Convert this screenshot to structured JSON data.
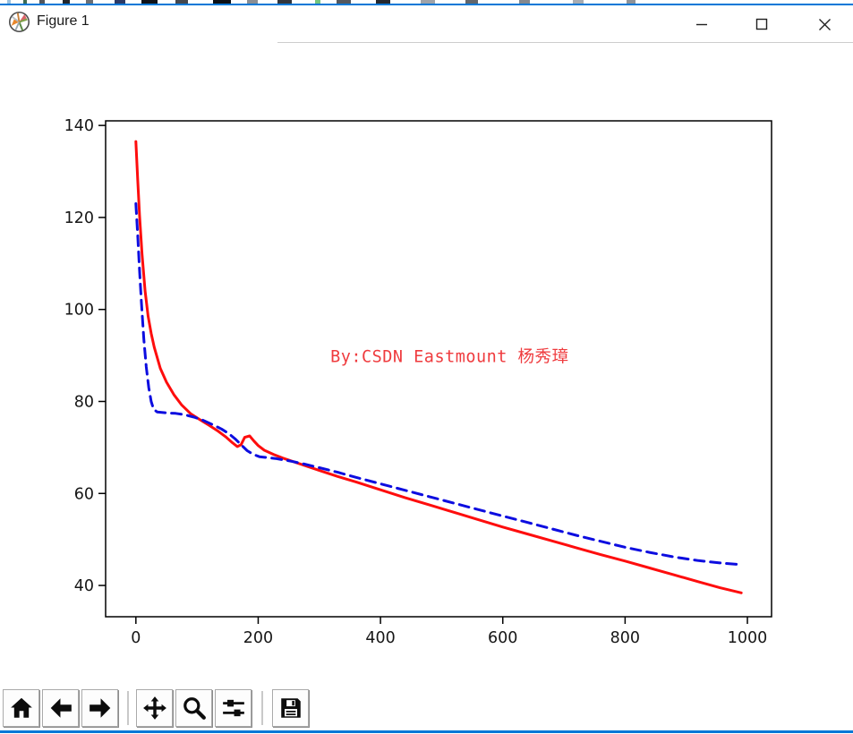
{
  "window": {
    "title": "Figure 1",
    "accent_color": "#0078d7",
    "icon_name": "matplotlib-logo-icon",
    "controls": [
      {
        "name": "minimize",
        "icon": "minimize-icon"
      },
      {
        "name": "maximize",
        "icon": "maximize-icon"
      },
      {
        "name": "close",
        "icon": "close-icon"
      }
    ]
  },
  "toolbar": {
    "buttons": [
      {
        "name": "home",
        "icon": "home-icon"
      },
      {
        "name": "back",
        "icon": "back-arrow-icon"
      },
      {
        "name": "forward",
        "icon": "forward-arrow-icon"
      },
      {
        "name": "pan",
        "icon": "pan-arrows-icon"
      },
      {
        "name": "zoom-to-rect",
        "icon": "zoom-magnifier-icon"
      },
      {
        "name": "configure-subplots",
        "icon": "sliders-icon"
      },
      {
        "name": "save",
        "icon": "save-floppy-icon"
      }
    ]
  },
  "chart_data": {
    "type": "line",
    "title": "",
    "xlabel": "",
    "ylabel": "",
    "xlim": [
      -49.5,
      1039.5
    ],
    "ylim": [
      33.2,
      141.0
    ],
    "xticks": [
      0,
      200,
      400,
      600,
      800,
      1000
    ],
    "yticks": [
      40,
      60,
      80,
      100,
      120,
      140
    ],
    "grid": false,
    "legend": "none",
    "annotation": {
      "text": "By:CSDN Eastmount 杨秀璋",
      "color": "#ef3b3e",
      "x": 318,
      "y": 88.6
    },
    "series": [
      {
        "name": "red-solid-curve",
        "color": "#fe0d0d",
        "style": "solid",
        "width": 3,
        "dash": "",
        "points": [
          [
            0,
            136.5
          ],
          [
            3,
            128
          ],
          [
            6,
            120.5
          ],
          [
            10,
            112
          ],
          [
            15,
            104
          ],
          [
            20,
            98.5
          ],
          [
            25,
            94.8
          ],
          [
            30,
            91.8
          ],
          [
            40,
            87.2
          ],
          [
            50,
            84.2
          ],
          [
            62,
            81.5
          ],
          [
            75,
            79.2
          ],
          [
            90,
            77.3
          ],
          [
            105,
            76.0
          ],
          [
            120,
            74.8
          ],
          [
            135,
            73.5
          ],
          [
            148,
            72.2
          ],
          [
            158,
            71.0
          ],
          [
            166,
            70.2
          ],
          [
            172,
            70.6
          ],
          [
            178,
            72.2
          ],
          [
            186,
            72.5
          ],
          [
            193,
            71.4
          ],
          [
            200,
            70.4
          ],
          [
            210,
            69.4
          ],
          [
            225,
            68.5
          ],
          [
            240,
            67.7
          ],
          [
            260,
            66.8
          ],
          [
            280,
            65.9
          ],
          [
            300,
            65.0
          ],
          [
            330,
            63.7
          ],
          [
            360,
            62.5
          ],
          [
            400,
            60.8
          ],
          [
            440,
            59.1
          ],
          [
            480,
            57.5
          ],
          [
            520,
            55.9
          ],
          [
            560,
            54.3
          ],
          [
            600,
            52.7
          ],
          [
            640,
            51.2
          ],
          [
            680,
            49.7
          ],
          [
            720,
            48.2
          ],
          [
            760,
            46.7
          ],
          [
            800,
            45.3
          ],
          [
            840,
            43.8
          ],
          [
            880,
            42.3
          ],
          [
            920,
            40.8
          ],
          [
            955,
            39.5
          ],
          [
            990,
            38.4
          ]
        ]
      },
      {
        "name": "blue-dashed-curve",
        "color": "#0d0de0",
        "style": "dashed",
        "width": 3,
        "dash": "11 7",
        "points": [
          [
            0,
            123
          ],
          [
            3,
            116
          ],
          [
            6,
            108.5
          ],
          [
            9,
            101.5
          ],
          [
            13,
            93.5
          ],
          [
            17,
            87.5
          ],
          [
            21,
            83
          ],
          [
            25,
            80
          ],
          [
            29,
            78.3
          ],
          [
            35,
            77.7
          ],
          [
            50,
            77.5
          ],
          [
            65,
            77.4
          ],
          [
            80,
            77.1
          ],
          [
            95,
            76.6
          ],
          [
            110,
            75.9
          ],
          [
            125,
            75.0
          ],
          [
            140,
            74.0
          ],
          [
            152,
            73.0
          ],
          [
            162,
            71.9
          ],
          [
            172,
            70.6
          ],
          [
            182,
            69.3
          ],
          [
            192,
            68.5
          ],
          [
            202,
            68.0
          ],
          [
            215,
            67.8
          ],
          [
            228,
            67.6
          ],
          [
            242,
            67.3
          ],
          [
            258,
            66.9
          ],
          [
            275,
            66.4
          ],
          [
            300,
            65.6
          ],
          [
            330,
            64.6
          ],
          [
            360,
            63.5
          ],
          [
            400,
            62.1
          ],
          [
            440,
            60.7
          ],
          [
            480,
            59.3
          ],
          [
            520,
            57.9
          ],
          [
            560,
            56.5
          ],
          [
            600,
            55.1
          ],
          [
            640,
            53.7
          ],
          [
            680,
            52.3
          ],
          [
            720,
            50.9
          ],
          [
            760,
            49.6
          ],
          [
            800,
            48.3
          ],
          [
            840,
            47.2
          ],
          [
            880,
            46.2
          ],
          [
            920,
            45.4
          ],
          [
            955,
            44.9
          ],
          [
            990,
            44.5
          ]
        ]
      }
    ]
  }
}
